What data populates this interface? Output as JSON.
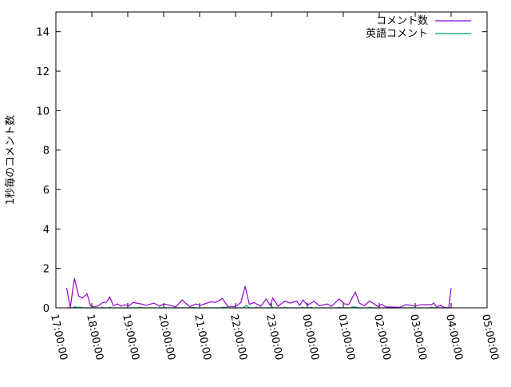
{
  "chart_data": {
    "type": "line",
    "title": "",
    "xlabel": "",
    "ylabel": "1秒毎のコメント数",
    "xlim": [
      "17:00:00",
      "05:00:00"
    ],
    "ylim": [
      0,
      15
    ],
    "yticks": [
      0,
      2,
      4,
      6,
      8,
      10,
      12,
      14
    ],
    "xticks": [
      "17:00:00",
      "18:00:00",
      "19:00:00",
      "20:00:00",
      "21:00:00",
      "22:00:00",
      "23:00:00",
      "00:00:00",
      "01:00:00",
      "02:00:00",
      "03:00:00",
      "04:00:00",
      "05:00:00"
    ],
    "grid": false,
    "legend_position": "top-right",
    "series": [
      {
        "name": "コメント数",
        "color": "#9400d3",
        "points": [
          [
            "17:18",
            1.0
          ],
          [
            "17:24",
            0
          ],
          [
            "17:31",
            1.5
          ],
          [
            "17:38",
            0.6
          ],
          [
            "17:44",
            0.5
          ],
          [
            "17:52",
            0.7
          ],
          [
            "17:58",
            0.1
          ],
          [
            "18:04",
            0.05
          ],
          [
            "18:11",
            0.1
          ],
          [
            "18:18",
            0.27
          ],
          [
            "18:24",
            0.28
          ],
          [
            "18:30",
            0.55
          ],
          [
            "18:36",
            0.1
          ],
          [
            "18:43",
            0.2
          ],
          [
            "18:49",
            0.08
          ],
          [
            "18:55",
            0.15
          ],
          [
            "19:02",
            0.1
          ],
          [
            "19:09",
            0.27
          ],
          [
            "19:22",
            0.2
          ],
          [
            "19:31",
            0.13
          ],
          [
            "19:44",
            0.24
          ],
          [
            "19:53",
            0.08
          ],
          [
            "20:00",
            0.2
          ],
          [
            "20:11",
            0.13
          ],
          [
            "20:20",
            0.04
          ],
          [
            "20:31",
            0.4
          ],
          [
            "20:44",
            0.05
          ],
          [
            "20:53",
            0.2
          ],
          [
            "21:02",
            0.13
          ],
          [
            "21:18",
            0.3
          ],
          [
            "21:27",
            0.28
          ],
          [
            "21:38",
            0.48
          ],
          [
            "21:47",
            0.07
          ],
          [
            "22:00",
            0.07
          ],
          [
            "22:09",
            0.27
          ],
          [
            "22:16",
            1.1
          ],
          [
            "22:23",
            0.18
          ],
          [
            "22:31",
            0.27
          ],
          [
            "22:42",
            0.07
          ],
          [
            "22:51",
            0.45
          ],
          [
            "22:58",
            0.13
          ],
          [
            "23:02",
            0.5
          ],
          [
            "23:11",
            0.08
          ],
          [
            "23:22",
            0.34
          ],
          [
            "23:31",
            0.24
          ],
          [
            "23:42",
            0.35
          ],
          [
            "23:47",
            0.13
          ],
          [
            "23:53",
            0.4
          ],
          [
            "00:00",
            0.13
          ],
          [
            "00:11",
            0.34
          ],
          [
            "00:20",
            0.1
          ],
          [
            "00:33",
            0.2
          ],
          [
            "00:40",
            0.07
          ],
          [
            "00:53",
            0.45
          ],
          [
            "01:02",
            0.2
          ],
          [
            "01:09",
            0.18
          ],
          [
            "01:20",
            0.8
          ],
          [
            "01:27",
            0.24
          ],
          [
            "01:35",
            0.1
          ],
          [
            "01:44",
            0.35
          ],
          [
            "01:58",
            0.07
          ],
          [
            "02:04",
            0.18
          ],
          [
            "02:11",
            0.04
          ],
          [
            "02:20",
            0.04
          ],
          [
            "02:35",
            0.03
          ],
          [
            "02:44",
            0.16
          ],
          [
            "02:53",
            0.13
          ],
          [
            "03:00",
            0.08
          ],
          [
            "03:09",
            0.16
          ],
          [
            "03:27",
            0.16
          ],
          [
            "03:31",
            0.24
          ],
          [
            "03:36",
            0.04
          ],
          [
            "03:42",
            0.13
          ],
          [
            "03:49",
            0.01
          ],
          [
            "03:56",
            0.01
          ],
          [
            "04:00",
            1.0
          ]
        ]
      },
      {
        "name": "英語コメント",
        "color": "#009e73",
        "points": [
          [
            "17:18",
            0
          ],
          [
            "17:28",
            0
          ],
          [
            "17:31",
            0.05
          ],
          [
            "17:36",
            0.03
          ],
          [
            "17:42",
            0.03
          ],
          [
            "17:46",
            0
          ],
          [
            "18:15",
            0
          ],
          [
            "18:17",
            0.03
          ],
          [
            "18:20",
            0
          ],
          [
            "18:28",
            0
          ],
          [
            "18:30",
            0.04
          ],
          [
            "18:33",
            0
          ],
          [
            "19:17",
            0
          ],
          [
            "19:20",
            0.03
          ],
          [
            "19:24",
            0
          ],
          [
            "19:58",
            0
          ],
          [
            "20:00",
            0.03
          ],
          [
            "20:03",
            0
          ],
          [
            "20:46",
            0
          ],
          [
            "20:50",
            0.03
          ],
          [
            "20:53",
            0
          ],
          [
            "21:35",
            0
          ],
          [
            "21:38",
            0.03
          ],
          [
            "21:45",
            0.03
          ],
          [
            "21:48",
            0
          ],
          [
            "22:13",
            0
          ],
          [
            "22:18",
            0.12
          ],
          [
            "22:23",
            0
          ],
          [
            "22:32",
            0
          ],
          [
            "22:35",
            0.04
          ],
          [
            "22:38",
            0
          ],
          [
            "22:59",
            0
          ],
          [
            "23:02",
            0.03
          ],
          [
            "23:05",
            0
          ],
          [
            "23:20",
            0
          ],
          [
            "23:22",
            0.03
          ],
          [
            "23:25",
            0
          ],
          [
            "23:50",
            0
          ],
          [
            "23:53",
            0.03
          ],
          [
            "23:56",
            0
          ],
          [
            "00:03",
            0
          ],
          [
            "00:06",
            0.03
          ],
          [
            "00:09",
            0
          ],
          [
            "00:50",
            0
          ],
          [
            "00:53",
            0.03
          ],
          [
            "00:56",
            0
          ],
          [
            "01:12",
            0
          ],
          [
            "01:15",
            0.04
          ],
          [
            "01:21",
            0.04
          ],
          [
            "01:24",
            0
          ],
          [
            "01:41",
            0
          ],
          [
            "01:44",
            0.03
          ],
          [
            "01:47",
            0
          ],
          [
            "03:24",
            0
          ],
          [
            "03:27",
            0.03
          ],
          [
            "03:30",
            0
          ],
          [
            "04:00",
            0
          ]
        ]
      }
    ]
  }
}
